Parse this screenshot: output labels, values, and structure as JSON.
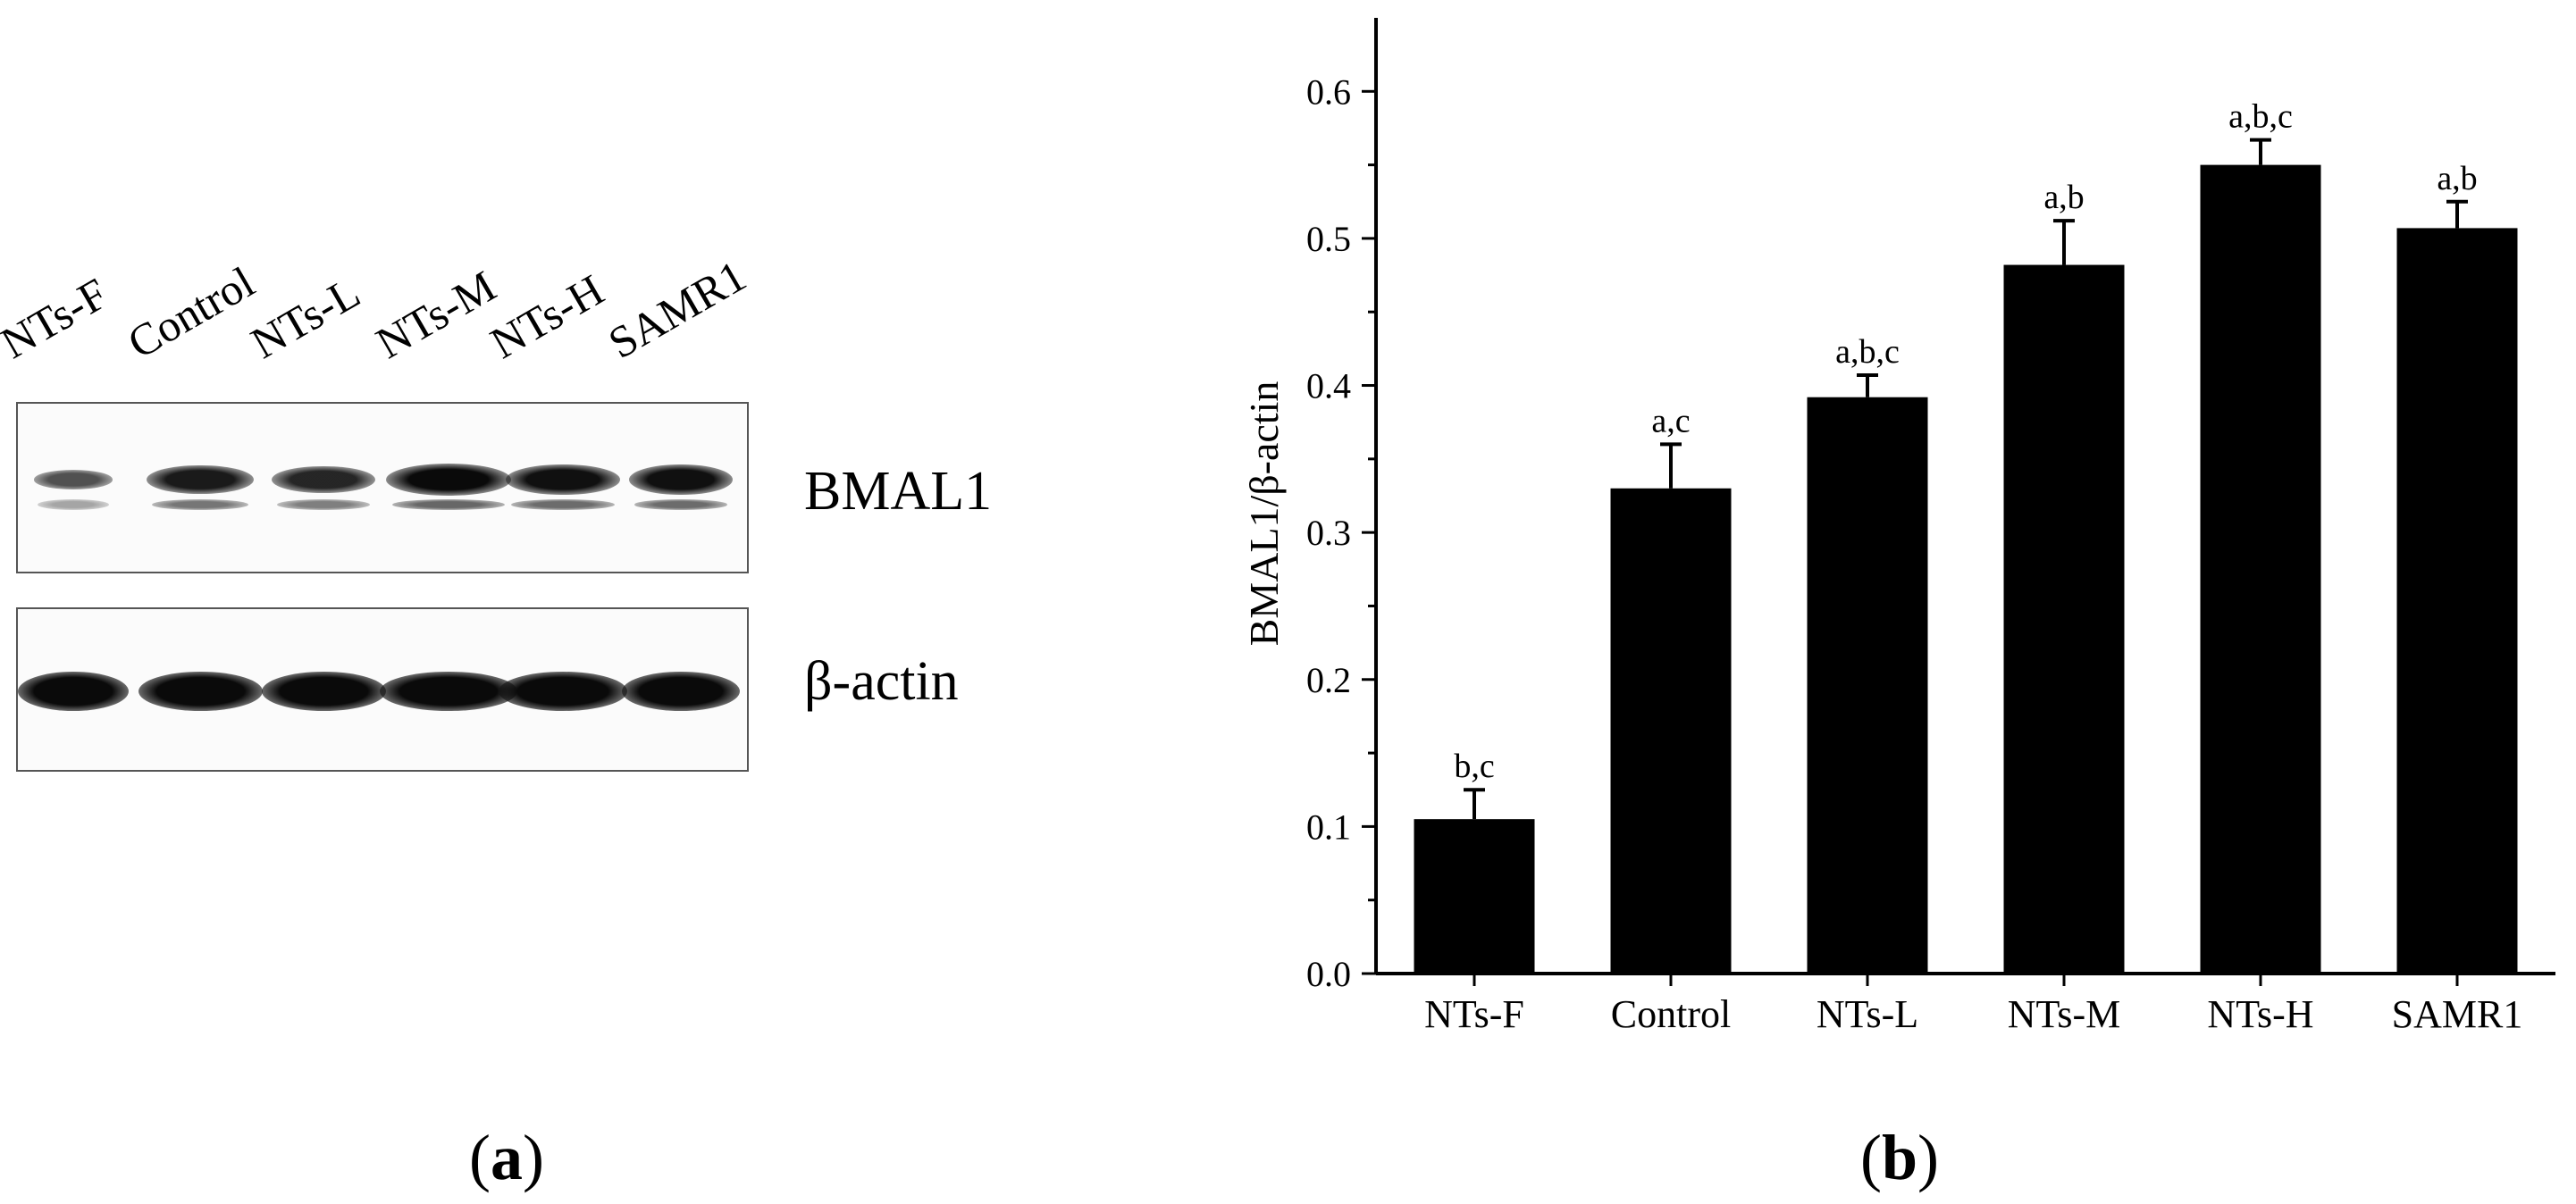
{
  "panel_a": {
    "label_open": "(",
    "label_letter": "a",
    "label_close": ")",
    "lanes": [
      "NTs-F",
      "Control",
      "NTs-L",
      "NTs-M",
      "NTs-H",
      "SAMR1"
    ],
    "blots": {
      "bmal1": "BMAL1",
      "actin": "β-actin"
    },
    "bmal1_intensity": [
      0.35,
      0.85,
      0.75,
      1.0,
      0.95,
      0.95
    ],
    "actin_intensity": [
      1.0,
      1.0,
      1.0,
      1.0,
      1.0,
      1.0
    ]
  },
  "panel_b": {
    "label_open": "(",
    "label_letter": "b",
    "label_close": ")"
  },
  "chart_data": {
    "type": "bar",
    "categories": [
      "NTs-F",
      "Control",
      "NTs-L",
      "NTs-M",
      "NTs-H",
      "SAMR1"
    ],
    "values": [
      0.105,
      0.33,
      0.392,
      0.482,
      0.55,
      0.507
    ],
    "errors": [
      0.02,
      0.03,
      0.015,
      0.03,
      0.017,
      0.018
    ],
    "annotations": [
      "b,c",
      "a,c",
      "a,b,c",
      "a,b",
      "a,b,c",
      "a,b"
    ],
    "title": "",
    "xlabel": "",
    "ylabel": "BMAL1/β-actin",
    "ylim": [
      0,
      0.65
    ],
    "yticks": [
      "0.0",
      "0.1",
      "0.2",
      "0.3",
      "0.4",
      "0.5",
      "0.6"
    ],
    "grid": false,
    "bar_color": "#000000"
  }
}
